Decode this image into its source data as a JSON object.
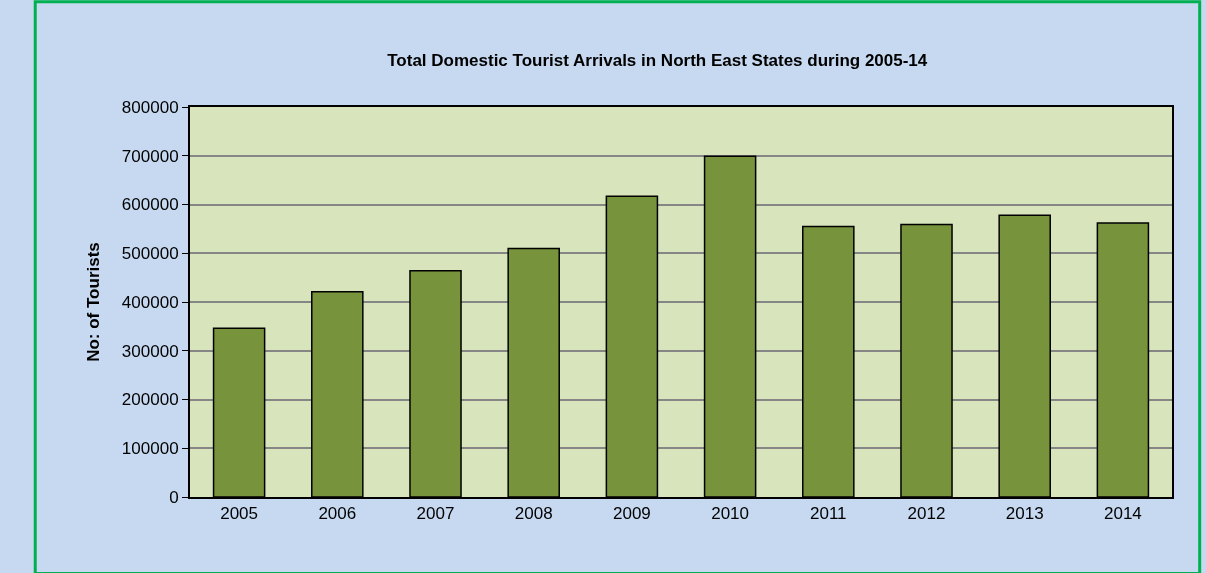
{
  "chart_data": {
    "type": "bar",
    "title": "Total Domestic Tourist Arrivals in North East States during 2005-14",
    "ylabel": "No: of Tourists",
    "categories": [
      "2005",
      "2006",
      "2007",
      "2008",
      "2009",
      "2010",
      "2011",
      "2012",
      "2013",
      "2014"
    ],
    "values": [
      346000,
      421000,
      464000,
      510000,
      617000,
      699000,
      555000,
      559000,
      578000,
      562000
    ],
    "color": "#77933c",
    "ylim": [
      0,
      800000
    ],
    "yticks": [
      0,
      100000,
      200000,
      300000,
      400000,
      500000,
      600000,
      700000,
      800000
    ],
    "grid": "y"
  }
}
